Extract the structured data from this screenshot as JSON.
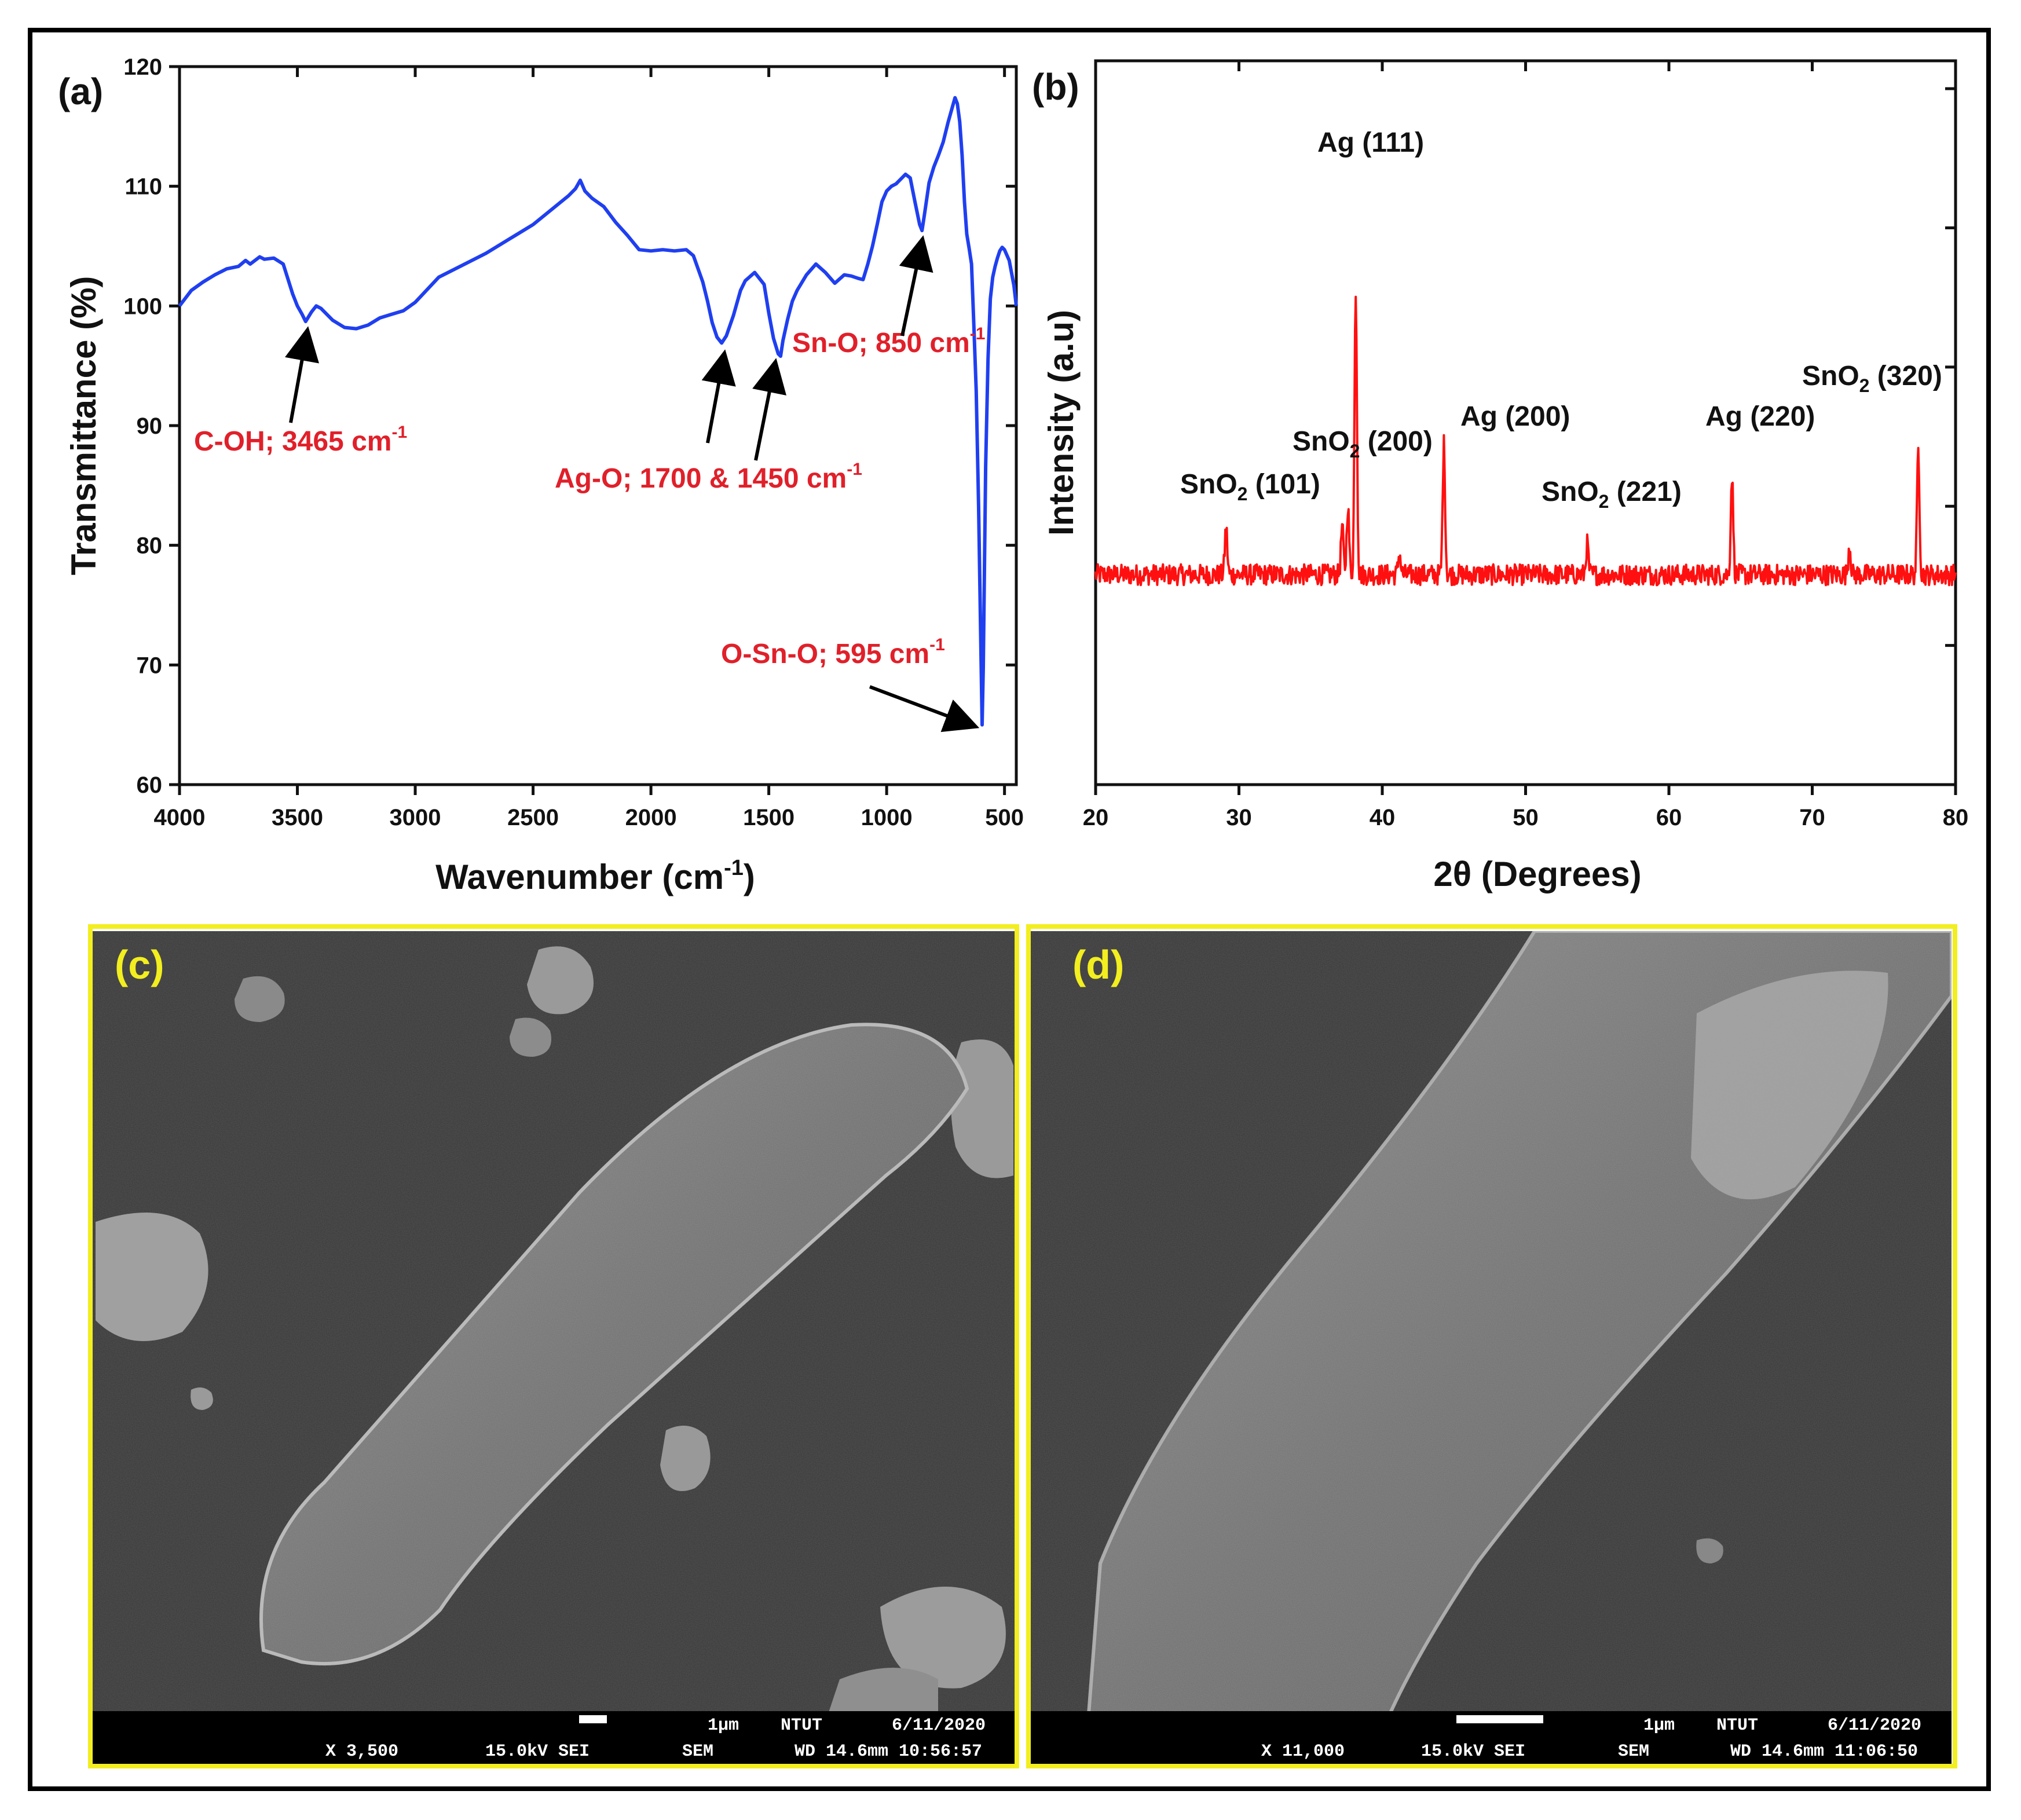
{
  "panels": {
    "a_label": "(a)",
    "b_label": "(b)",
    "c_label": "(c)",
    "d_label": "(d)"
  },
  "chart_data": [
    {
      "type": "line",
      "panel": "(a)",
      "xlabel_main": "Wavenumber (cm",
      "xlabel_sup": "-1",
      "xlabel_tail": ")",
      "ylabel": "Transmittance (%)",
      "xlim": [
        4000,
        450
      ],
      "x_reversed": true,
      "ylim": [
        60,
        120
      ],
      "x_ticks": [
        "4000",
        "3500",
        "3000",
        "2500",
        "2000",
        "1500",
        "1000",
        "500"
      ],
      "y_ticks": [
        "60",
        "70",
        "80",
        "90",
        "100",
        "110",
        "120"
      ],
      "series": [
        {
          "color": "#1f3ff0",
          "x": [
            4000,
            3950,
            3900,
            3850,
            3800,
            3750,
            3720,
            3700,
            3660,
            3640,
            3600,
            3560,
            3520,
            3500,
            3480,
            3465,
            3440,
            3420,
            3400,
            3350,
            3300,
            3250,
            3200,
            3150,
            3100,
            3050,
            3000,
            2900,
            2800,
            2700,
            2600,
            2500,
            2450,
            2400,
            2350,
            2320,
            2300,
            2280,
            2250,
            2200,
            2150,
            2100,
            2050,
            2000,
            1950,
            1900,
            1850,
            1820,
            1800,
            1780,
            1760,
            1740,
            1720,
            1700,
            1680,
            1650,
            1620,
            1600,
            1560,
            1520,
            1500,
            1480,
            1460,
            1450,
            1440,
            1420,
            1400,
            1380,
            1340,
            1300,
            1260,
            1220,
            1180,
            1150,
            1120,
            1100,
            1080,
            1060,
            1040,
            1020,
            1000,
            980,
            960,
            940,
            920,
            900,
            880,
            860,
            850,
            840,
            820,
            800,
            780,
            760,
            740,
            720,
            710,
            700,
            690,
            680,
            670,
            660,
            650,
            640,
            630,
            620,
            610,
            600,
            595,
            590,
            580,
            570,
            560,
            550,
            540,
            530,
            520,
            510,
            500,
            480,
            460,
            450
          ],
          "y": [
            100.0,
            101.3,
            102.0,
            102.6,
            103.1,
            103.3,
            103.8,
            103.5,
            104.1,
            103.9,
            104.0,
            103.5,
            101.0,
            100.0,
            99.3,
            98.7,
            99.5,
            100.0,
            99.8,
            98.8,
            98.2,
            98.1,
            98.4,
            99.0,
            99.3,
            99.6,
            100.3,
            102.4,
            103.4,
            104.4,
            105.6,
            106.8,
            107.6,
            108.4,
            109.2,
            109.8,
            110.5,
            109.6,
            109.0,
            108.3,
            107.0,
            105.9,
            104.7,
            104.6,
            104.7,
            104.6,
            104.7,
            104.2,
            103.1,
            102.0,
            100.4,
            98.6,
            97.4,
            96.9,
            97.5,
            99.2,
            101.3,
            102.1,
            102.8,
            101.8,
            99.4,
            97.3,
            96.0,
            95.8,
            97.1,
            98.9,
            100.4,
            101.3,
            102.6,
            103.5,
            102.8,
            101.9,
            102.6,
            102.5,
            102.3,
            102.2,
            103.5,
            105.0,
            106.8,
            108.7,
            109.6,
            110.0,
            110.2,
            110.6,
            111.0,
            110.7,
            108.7,
            106.8,
            106.3,
            107.6,
            110.3,
            111.6,
            112.6,
            113.7,
            115.3,
            116.7,
            117.4,
            116.9,
            115.4,
            112.6,
            108.7,
            106.0,
            104.8,
            103.5,
            98.4,
            92.9,
            83.3,
            71.2,
            65.0,
            69.8,
            86.6,
            95.6,
            100.6,
            102.4,
            103.3,
            104.0,
            104.6,
            104.9,
            104.7,
            103.8,
            101.7,
            100.0
          ]
        }
      ],
      "annotations": [
        {
          "text": "C-OH; 3465 cm",
          "sup": "-1"
        },
        {
          "text": "Ag-O; 1700 & 1450 cm",
          "sup": "-1"
        },
        {
          "text": "Sn-O; 850 cm",
          "sup": "-1"
        },
        {
          "text": "O-Sn-O; 595 cm",
          "sup": "-1"
        }
      ]
    },
    {
      "type": "line",
      "panel": "(b)",
      "xlabel": "2θ (Degrees)",
      "ylabel": "Intensity (a.u)",
      "xlim": [
        20,
        80
      ],
      "x_ticks": [
        "20",
        "30",
        "40",
        "50",
        "60",
        "70",
        "80"
      ],
      "series": [
        {
          "color": "#ff1010",
          "baseline": 1.0,
          "noise_amplitude": 0.12,
          "peaks": [
            {
              "x": 29.1,
              "height": 0.55
            },
            {
              "x": 37.2,
              "height": 0.55
            },
            {
              "x": 37.6,
              "height": 0.8
            },
            {
              "x": 38.15,
              "height": 3.3
            },
            {
              "x": 41.2,
              "height": 0.25
            },
            {
              "x": 44.3,
              "height": 1.5
            },
            {
              "x": 54.3,
              "height": 0.35
            },
            {
              "x": 64.4,
              "height": 1.15
            },
            {
              "x": 72.6,
              "height": 0.35
            },
            {
              "x": 77.4,
              "height": 1.45
            }
          ]
        }
      ],
      "annotations": [
        {
          "main": "SnO",
          "sub": "2",
          "rest": " (101)"
        },
        {
          "main": "SnO",
          "sub": "2",
          "rest": " (200)"
        },
        {
          "main": "Ag",
          "sub": "",
          "rest": " (111)"
        },
        {
          "main": "Ag",
          "sub": "",
          "rest": " (200)"
        },
        {
          "main": "SnO",
          "sub": "2",
          "rest": " (221)"
        },
        {
          "main": "Ag",
          "sub": "",
          "rest": " (220)"
        },
        {
          "main": "SnO",
          "sub": "2",
          "rest": " (320)"
        }
      ]
    }
  ],
  "sem": {
    "c": {
      "scale_text": "1μm",
      "lab": "NTUT",
      "date": "6/11/2020",
      "mag": "X 3,500",
      "kv": "15.0kV SEI",
      "mode": "SEM",
      "wd_time": "WD 14.6mm 10:56:57"
    },
    "d": {
      "scale_text": "1μm",
      "lab": "NTUT",
      "date": "6/11/2020",
      "mag": "X 11,000",
      "kv": "15.0kV SEI",
      "mode": "SEM",
      "wd_time": "WD 14.6mm 11:06:50"
    },
    "frame_color": "#f2ee1f"
  }
}
